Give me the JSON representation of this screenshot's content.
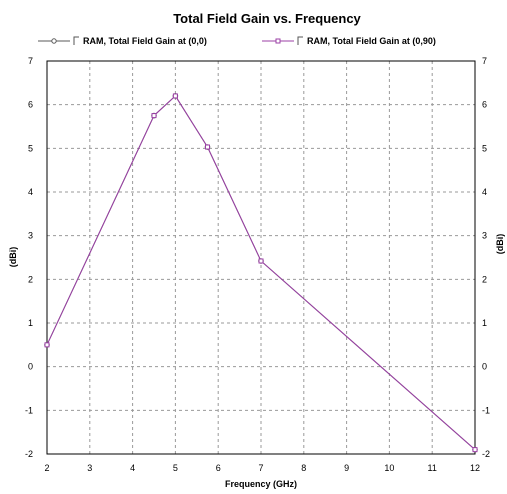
{
  "chart_data": {
    "type": "line",
    "title": "Total Field Gain vs. Frequency",
    "xlabel": "Frequency (GHz)",
    "ylabel": "(dBi)",
    "ylabel_right": "(dBi)",
    "xlim": [
      2,
      12
    ],
    "ylim": [
      -2,
      7
    ],
    "xticks": [
      "2",
      "3",
      "4",
      "5",
      "6",
      "7",
      "8",
      "9",
      "10",
      "11",
      "12"
    ],
    "yticks": [
      "-2",
      "-1",
      "0",
      "1",
      "2",
      "3",
      "4",
      "5",
      "6",
      "7"
    ],
    "grid": true,
    "legend_position": "top",
    "series": [
      {
        "name": "RAM, Total Field Gain at (0,0)",
        "color": "#5a5a5a",
        "marker": "circle",
        "x": [
          2,
          4.5,
          5,
          5.75,
          7,
          12
        ],
        "y": [
          0.5,
          5.75,
          6.2,
          5.03,
          2.42,
          -1.9
        ]
      },
      {
        "name": "RAM, Total Field Gain at (0,90)",
        "color": "#9b3fa6",
        "marker": "square",
        "x": [
          2,
          4.5,
          5,
          5.75,
          7,
          12
        ],
        "y": [
          0.5,
          5.75,
          6.2,
          5.03,
          2.42,
          -1.9
        ]
      }
    ]
  }
}
